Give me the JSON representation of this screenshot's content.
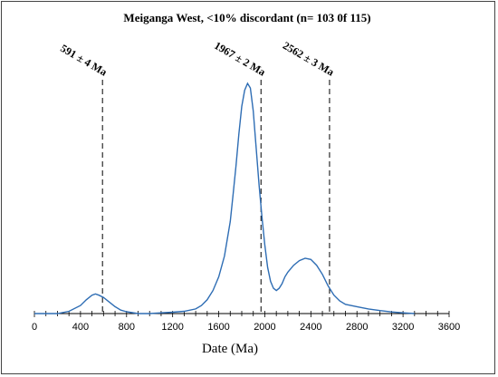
{
  "chart_data": {
    "type": "line",
    "title": "Meiganga West, <10% discordant (n= 103 0f 115)",
    "xlabel": "Date (Ma)",
    "ylabel": "",
    "xlim": [
      0,
      3600
    ],
    "ylim": [
      0,
      1
    ],
    "grid": false,
    "legend": "none",
    "line_color": "#2e6db4",
    "x_ticks": [
      0,
      400,
      800,
      1200,
      1600,
      2000,
      2400,
      2800,
      3200,
      3600
    ],
    "series": [
      {
        "name": "",
        "x": [
          0,
          200,
          300,
          400,
          450,
          500,
          530,
          560,
          600,
          650,
          700,
          750,
          800,
          850,
          900,
          1000,
          1100,
          1200,
          1300,
          1400,
          1450,
          1500,
          1550,
          1600,
          1650,
          1700,
          1725,
          1750,
          1775,
          1800,
          1825,
          1850,
          1875,
          1900,
          1925,
          1950,
          1975,
          2000,
          2025,
          2050,
          2075,
          2100,
          2125,
          2150,
          2175,
          2200,
          2250,
          2300,
          2350,
          2400,
          2450,
          2500,
          2550,
          2600,
          2650,
          2700,
          2800,
          2900,
          3000,
          3100,
          3200,
          3300
        ],
        "y": [
          0.0,
          0.0,
          0.01,
          0.035,
          0.06,
          0.08,
          0.085,
          0.08,
          0.07,
          0.05,
          0.03,
          0.015,
          0.008,
          0.004,
          0.0,
          0.0,
          0.003,
          0.006,
          0.01,
          0.02,
          0.035,
          0.06,
          0.1,
          0.16,
          0.25,
          0.4,
          0.52,
          0.64,
          0.78,
          0.9,
          0.97,
          1.0,
          0.98,
          0.88,
          0.72,
          0.56,
          0.42,
          0.3,
          0.2,
          0.14,
          0.11,
          0.1,
          0.11,
          0.13,
          0.16,
          0.18,
          0.21,
          0.23,
          0.24,
          0.235,
          0.21,
          0.17,
          0.12,
          0.08,
          0.055,
          0.04,
          0.03,
          0.02,
          0.013,
          0.007,
          0.003,
          0.0
        ]
      }
    ],
    "annotations": [
      {
        "label": "591 ± 4 Ma",
        "x": 591
      },
      {
        "label": "1967 ± 2 Ma",
        "x": 1967
      },
      {
        "label": "2562 ± 3 Ma",
        "x": 2562
      }
    ]
  }
}
